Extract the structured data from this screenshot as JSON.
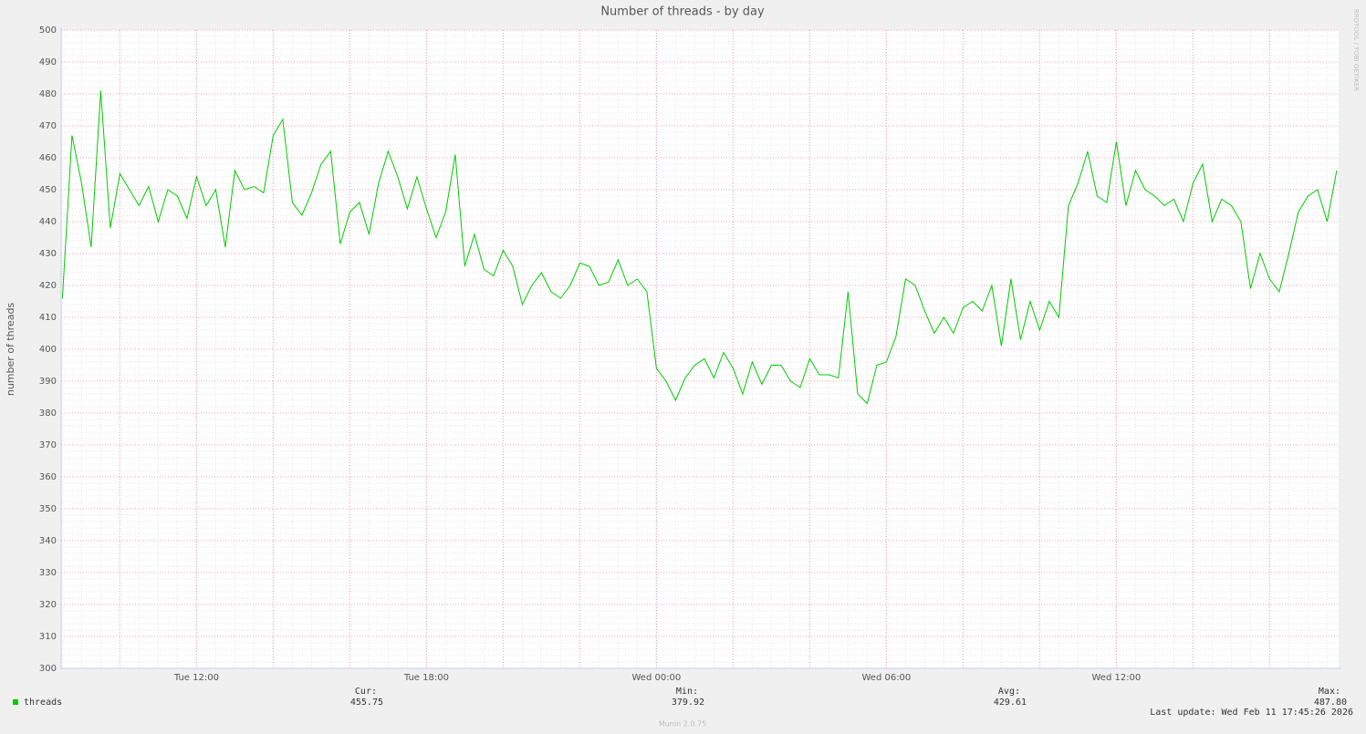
{
  "chart_data": {
    "type": "line",
    "title": "Number of threads - by day",
    "y_label": "number of threads",
    "x": [
      "Tue 08:30",
      "Tue 08:45",
      "Tue 09:00",
      "Tue 09:15",
      "Tue 09:30",
      "Tue 09:45",
      "Tue 10:00",
      "Tue 10:15",
      "Tue 10:30",
      "Tue 10:45",
      "Tue 11:00",
      "Tue 11:15",
      "Tue 11:30",
      "Tue 11:45",
      "Tue 12:00",
      "Tue 12:15",
      "Tue 12:30",
      "Tue 12:45",
      "Tue 13:00",
      "Tue 13:15",
      "Tue 13:30",
      "Tue 13:45",
      "Tue 14:00",
      "Tue 14:15",
      "Tue 14:30",
      "Tue 14:45",
      "Tue 15:00",
      "Tue 15:15",
      "Tue 15:30",
      "Tue 15:45",
      "Tue 16:00",
      "Tue 16:15",
      "Tue 16:30",
      "Tue 16:45",
      "Tue 17:00",
      "Tue 17:15",
      "Tue 17:30",
      "Tue 17:45",
      "Tue 18:00",
      "Tue 18:15",
      "Tue 18:30",
      "Tue 18:45",
      "Tue 19:00",
      "Tue 19:15",
      "Tue 19:30",
      "Tue 19:45",
      "Tue 20:00",
      "Tue 20:15",
      "Tue 20:30",
      "Tue 20:45",
      "Tue 21:00",
      "Tue 21:15",
      "Tue 21:30",
      "Tue 21:45",
      "Tue 22:00",
      "Tue 22:15",
      "Tue 22:30",
      "Tue 22:45",
      "Tue 23:00",
      "Tue 23:15",
      "Tue 23:30",
      "Tue 23:45",
      "Wed 00:00",
      "Wed 00:15",
      "Wed 00:30",
      "Wed 00:45",
      "Wed 01:00",
      "Wed 01:15",
      "Wed 01:30",
      "Wed 01:45",
      "Wed 02:00",
      "Wed 02:15",
      "Wed 02:30",
      "Wed 02:45",
      "Wed 03:00",
      "Wed 03:15",
      "Wed 03:30",
      "Wed 03:45",
      "Wed 04:00",
      "Wed 04:15",
      "Wed 04:30",
      "Wed 04:45",
      "Wed 05:00",
      "Wed 05:15",
      "Wed 05:30",
      "Wed 05:45",
      "Wed 06:00",
      "Wed 06:15",
      "Wed 06:30",
      "Wed 06:45",
      "Wed 07:00",
      "Wed 07:15",
      "Wed 07:30",
      "Wed 07:45",
      "Wed 08:00",
      "Wed 08:15",
      "Wed 08:30",
      "Wed 08:45",
      "Wed 09:00",
      "Wed 09:15",
      "Wed 09:30",
      "Wed 09:45",
      "Wed 10:00",
      "Wed 10:15",
      "Wed 10:30",
      "Wed 10:45",
      "Wed 11:00",
      "Wed 11:15",
      "Wed 11:30",
      "Wed 11:45",
      "Wed 12:00",
      "Wed 12:15",
      "Wed 12:30",
      "Wed 12:45",
      "Wed 13:00",
      "Wed 13:15",
      "Wed 13:30",
      "Wed 13:45",
      "Wed 14:00",
      "Wed 14:15",
      "Wed 14:30",
      "Wed 14:45",
      "Wed 15:00",
      "Wed 15:15",
      "Wed 15:30",
      "Wed 15:45",
      "Wed 16:00",
      "Wed 16:15",
      "Wed 16:30",
      "Wed 16:45",
      "Wed 17:00",
      "Wed 17:15",
      "Wed 17:30",
      "Wed 17:45"
    ],
    "series": [
      {
        "name": "threads",
        "color": "#00cc00",
        "values": [
          416,
          467,
          452,
          432,
          481,
          438,
          455,
          450,
          445,
          451,
          440,
          450,
          448,
          441,
          454,
          445,
          450,
          432,
          456,
          450,
          451,
          449,
          467,
          472,
          446,
          442,
          449,
          458,
          462,
          433,
          443,
          446,
          436,
          452,
          462,
          454,
          444,
          454,
          444,
          435,
          443,
          461,
          426,
          436,
          425,
          423,
          431,
          426,
          414,
          420,
          424,
          418,
          416,
          420,
          427,
          426,
          420,
          421,
          428,
          420,
          422,
          418,
          394,
          390,
          384,
          391,
          395,
          397,
          391,
          399,
          394,
          386,
          396,
          389,
          395,
          395,
          390,
          388,
          397,
          392,
          392,
          391,
          418,
          386,
          383,
          395,
          396,
          404,
          422,
          420,
          412,
          405,
          410,
          405,
          413,
          415,
          412,
          420,
          401,
          422,
          403,
          415,
          406,
          415,
          410,
          445,
          452,
          462,
          448,
          446,
          465,
          445,
          456,
          450,
          448,
          445,
          447,
          440,
          452,
          458,
          440,
          447,
          445,
          440,
          419,
          430,
          422,
          418,
          430,
          443,
          448,
          450,
          440,
          456
        ]
      }
    ],
    "xlim": [
      "Tue 08:28",
      "Wed 17:48"
    ],
    "ylim": [
      300,
      500
    ],
    "xticks": [
      "Tue 12:00",
      "Tue 18:00",
      "Wed 00:00",
      "Wed 06:00",
      "Wed 12:00"
    ],
    "yticks": [
      300,
      310,
      320,
      330,
      340,
      350,
      360,
      370,
      380,
      390,
      400,
      410,
      420,
      430,
      440,
      450,
      460,
      470,
      480,
      490,
      500
    ],
    "grid": true,
    "stats": [
      {
        "label": "Cur:",
        "value": "455.75"
      },
      {
        "label": "Min:",
        "value": "379.92"
      },
      {
        "label": "Avg:",
        "value": "429.61"
      },
      {
        "label": "Max:",
        "value": "487.80"
      }
    ],
    "last_update": "Last update: Wed Feb 11 17:45:26 2026",
    "footer": "Munin 2.0.75",
    "watermark": "RRDTOOL / TOBI OETIKER"
  }
}
